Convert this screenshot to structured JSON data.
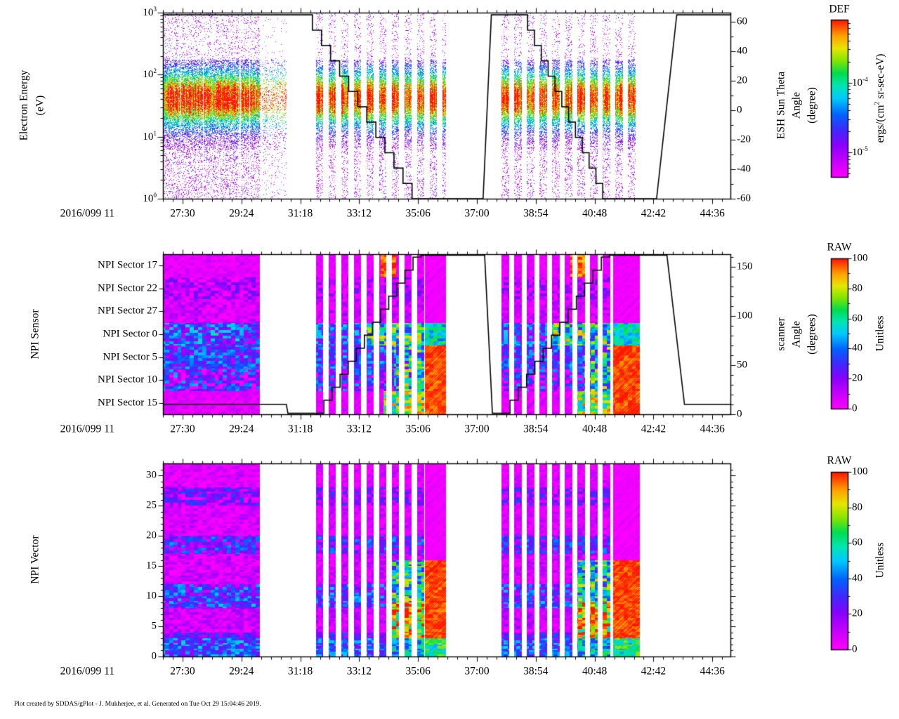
{
  "page": {
    "footer": "Plot created by SDDAS/gPlot - J. Mukherjee, et al.  Generated on Tue Oct 29 15:04:46 2019."
  },
  "chart_data": {
    "type": "heatmap",
    "time_axis": {
      "prefix": "2016/099 11",
      "ticks": [
        "27:30",
        "29:24",
        "31:18",
        "33:12",
        "35:06",
        "37:00",
        "38:54",
        "40:48",
        "42:42",
        "44:36"
      ],
      "range_seconds": [
        1612,
        2711
      ]
    },
    "bursts": [
      {
        "t0": 1612,
        "t1": 1800,
        "striped": false,
        "sparse_tail_t1": 1851
      },
      {
        "t0": 1908,
        "t1": 2160,
        "striped": true,
        "stripe_period": 24.5,
        "stripe_duty": 0.58,
        "tail_start": 0.84
      },
      {
        "t0": 2268,
        "t1": 2535,
        "striped": true,
        "stripe_period": 24.5,
        "stripe_duty": 0.58,
        "tail_start": 0.81
      }
    ],
    "colormap": [
      [
        0.0,
        "#ff00ff"
      ],
      [
        0.1,
        "#c800ff"
      ],
      [
        0.2,
        "#8c00ff"
      ],
      [
        0.3,
        "#4028ff"
      ],
      [
        0.4,
        "#0064ff"
      ],
      [
        0.5,
        "#00c8ff"
      ],
      [
        0.58,
        "#00e6b4"
      ],
      [
        0.66,
        "#00dc50"
      ],
      [
        0.74,
        "#82e600"
      ],
      [
        0.82,
        "#e6e600"
      ],
      [
        0.9,
        "#ffa000"
      ],
      [
        1.0,
        "#ff1400"
      ]
    ],
    "panels": [
      {
        "type": "heatmap",
        "name": "electron-energy-spectrogram",
        "ylabel_lines": [
          "Electron Energy",
          "(eV)"
        ],
        "y_scale": "log",
        "y_ticks": [
          {
            "base": "10",
            "exp": "0",
            "log": 0
          },
          {
            "base": "10",
            "exp": "1",
            "log": 1
          },
          {
            "base": "10",
            "exp": "2",
            "log": 2
          },
          {
            "base": "10",
            "exp": "3",
            "log": 3
          }
        ],
        "right_axis": {
          "title_lines": [
            "ESH Sun Theta",
            "Angle",
            "(degree)"
          ],
          "range": [
            -60,
            66
          ],
          "majors": [
            -60,
            -40,
            -20,
            0,
            20,
            40,
            60
          ],
          "minor_step": 10
        },
        "colorbar": {
          "title": "DEF",
          "unit_pre": "ergs/(cm",
          "unit_sup": "2",
          "unit_post": " sr-sec-eV)",
          "scale": "log",
          "labels": [
            {
              "base": "10",
              "exp": "-4",
              "frac": 0.4
            },
            {
              "base": "10",
              "exp": "-5",
              "frac": 0.845
            }
          ],
          "decade_frac": 0.445
        },
        "spectrum": {
          "core_center_log": 1.62,
          "core_sigma_log": 0.3,
          "dense_log_range": [
            0.8,
            2.25
          ],
          "speckle_prob_high": 0.1,
          "speckle_prob_low": 0.16,
          "gap_prob": 0.06,
          "sparse_tail_factor": 0.3
        },
        "overlay": {
          "name": "ESH Sun Theta Angle (degree)",
          "segments": [
            {
              "t0": 1612,
              "v0": 64.5,
              "t1": 1884,
              "v1": 64.5,
              "mode": "linear"
            },
            {
              "t0": 1884,
              "v0": 64.5,
              "t1": 2112,
              "v1": -60,
              "mode": "steps",
              "n": 13
            },
            {
              "t0": 2112,
              "v0": -60,
              "t1": 2232,
              "v1": -60,
              "mode": "linear"
            },
            {
              "t0": 2232,
              "v0": -60,
              "t1": 2248,
              "v1": 64.5,
              "mode": "linear"
            },
            {
              "t0": 2248,
              "v0": 64.5,
              "t1": 2305,
              "v1": 64.5,
              "mode": "linear"
            },
            {
              "t0": 2305,
              "v0": 64.5,
              "t1": 2477,
              "v1": -60,
              "mode": "steps",
              "n": 13
            },
            {
              "t0": 2477,
              "v0": -60,
              "t1": 2568,
              "v1": -60,
              "mode": "linear"
            },
            {
              "t0": 2568,
              "v0": -60,
              "t1": 2607,
              "v1": 64.5,
              "mode": "linear"
            },
            {
              "t0": 2607,
              "v0": 64.5,
              "t1": 2711,
              "v1": 64.5,
              "mode": "linear"
            }
          ]
        }
      },
      {
        "type": "heatmap",
        "name": "npi-sensor",
        "ylabel_lines": [
          "NPI Sensor"
        ],
        "row_labels": [
          "NPI Sector 17",
          "NPI Sector 22",
          "NPI Sector 27",
          "NPI Sector 0",
          "NPI Sector 5",
          "NPI Sector 10",
          "NPI Sector 15"
        ],
        "rows": [
          {
            "label": "NPI Sector 17",
            "base": 0.04,
            "noise": 0.05,
            "hot": {
              "p0": 0.5,
              "p1": 0.62,
              "v": 0.95,
              "noise": 0.1
            },
            "tail_v": 0.02,
            "tail_noise": 0.02
          },
          {
            "label": "NPI Sector 22",
            "base": 0.1,
            "noise": 0.17,
            "tail_v": 0.02,
            "tail_noise": 0.02
          },
          {
            "label": "NPI Sector 27",
            "base": 0.07,
            "noise": 0.1,
            "tail_v": 0.02,
            "tail_noise": 0.02
          },
          {
            "label": "NPI Sector 0",
            "base": 0.33,
            "noise": 0.24,
            "hot": {
              "p0": 0.35,
              "p1": 1.0,
              "v": 0.6,
              "noise": 0.3
            },
            "tail_v": 0.55,
            "tail_noise": 0.15
          },
          {
            "label": "NPI Sector 5",
            "base": 0.3,
            "noise": 0.2,
            "hot": {
              "p0": 0.6,
              "p1": 1.0,
              "v": 0.5,
              "noise": 0.32
            },
            "tail_v": 0.97,
            "tail_noise": 0.05
          },
          {
            "label": "NPI Sector 10",
            "base": 0.22,
            "noise": 0.26,
            "hot": {
              "p0": 0.6,
              "p1": 1.0,
              "v": 0.55,
              "noise": 0.35
            },
            "tail_v": 0.97,
            "tail_noise": 0.05
          },
          {
            "label": "NPI Sector 15",
            "base": 0.05,
            "noise": 0.05,
            "hot": {
              "p0": 0.52,
              "p1": 1.0,
              "v": 0.7,
              "noise": 0.25
            },
            "tail_v": 0.97,
            "tail_noise": 0.05
          }
        ],
        "right_axis": {
          "title_lines": [
            "scanner",
            "Angle",
            "(degrees)"
          ],
          "range": [
            0,
            163
          ],
          "majors": [
            0,
            50,
            100,
            150
          ],
          "minor_step": 10
        },
        "colorbar": {
          "title": "RAW",
          "unit": "Unitless",
          "range": [
            0,
            100
          ],
          "majors": [
            0,
            20,
            40,
            60,
            80,
            100
          ],
          "minor_step": 10
        },
        "overlay": {
          "name": "scanner Angle (degrees)",
          "segments": [
            {
              "t0": 1612,
              "v0": 10,
              "t1": 1851,
              "v1": 10,
              "mode": "linear"
            },
            {
              "t0": 1851,
              "v0": 10,
              "t1": 1854,
              "v1": 1,
              "mode": "linear"
            },
            {
              "t0": 1854,
              "v0": 1,
              "t1": 1908,
              "v1": 1,
              "mode": "linear"
            },
            {
              "t0": 1908,
              "v0": 1,
              "t1": 2112,
              "v1": 160,
              "mode": "steps",
              "n": 13
            },
            {
              "t0": 2112,
              "v0": 162,
              "t1": 2235,
              "v1": 162,
              "mode": "linear"
            },
            {
              "t0": 2235,
              "v0": 162,
              "t1": 2250,
              "v1": 1,
              "mode": "linear"
            },
            {
              "t0": 2250,
              "v0": 1,
              "t1": 2268,
              "v1": 1,
              "mode": "linear"
            },
            {
              "t0": 2268,
              "v0": 1,
              "t1": 2477,
              "v1": 160,
              "mode": "steps",
              "n": 13
            },
            {
              "t0": 2477,
              "v0": 162,
              "t1": 2588,
              "v1": 162,
              "mode": "linear"
            },
            {
              "t0": 2588,
              "v0": 162,
              "t1": 2622,
              "v1": 10,
              "mode": "linear"
            },
            {
              "t0": 2622,
              "v0": 10,
              "t1": 2711,
              "v1": 10,
              "mode": "linear"
            }
          ]
        }
      },
      {
        "type": "heatmap",
        "name": "npi-vector",
        "ylabel_lines": [
          "NPI Vector"
        ],
        "y_axis": {
          "range": [
            0,
            32
          ],
          "majors": [
            0,
            5,
            10,
            15,
            20,
            25,
            30
          ],
          "minor_step": 1
        },
        "default_bin": {
          "base": 0.06,
          "noise": 0.08
        },
        "bin_groups": [
          {
            "bins": [
              0,
              2
            ],
            "base": 0.35,
            "noise": 0.2
          },
          {
            "bins": [
              3,
              3
            ],
            "base": 0.25,
            "noise": 0.15
          },
          {
            "bins": [
              4,
              7
            ],
            "base": 0.08,
            "noise": 0.1
          },
          {
            "bins": [
              8,
              11
            ],
            "base": 0.3,
            "noise": 0.22
          },
          {
            "bins": [
              12,
              16
            ],
            "base": 0.07,
            "noise": 0.1
          },
          {
            "bins": [
              17,
              19
            ],
            "base": 0.25,
            "noise": 0.2
          },
          {
            "bins": [
              20,
              24
            ],
            "base": 0.06,
            "noise": 0.08
          },
          {
            "bins": [
              25,
              27
            ],
            "base": 0.18,
            "noise": 0.18
          },
          {
            "bins": [
              28,
              31
            ],
            "base": 0.05,
            "noise": 0.07
          }
        ],
        "hot_groups": [
          {
            "bins": [
              3,
              8
            ],
            "p0": 0.55,
            "v": 0.85,
            "noise": 0.3
          },
          {
            "bins": [
              9,
              15
            ],
            "p0": 0.55,
            "v": 0.55,
            "noise": 0.3
          },
          {
            "bins": [
              0,
              2
            ],
            "p0": 0.55,
            "v": 0.5,
            "noise": 0.2
          }
        ],
        "tail_groups": [
          {
            "bins": [
              3,
              15
            ],
            "v": 0.97,
            "noise": 0.05
          },
          {
            "bins": [
              0,
              2
            ],
            "v": 0.62,
            "noise": 0.15
          },
          {
            "bins": [
              16,
              31
            ],
            "v": 0.02,
            "noise": 0.02
          }
        ],
        "colorbar": {
          "title": "RAW",
          "unit": "Unitless",
          "range": [
            0,
            100
          ],
          "majors": [
            0,
            20,
            40,
            60,
            80,
            100
          ],
          "minor_step": 10
        }
      }
    ]
  }
}
